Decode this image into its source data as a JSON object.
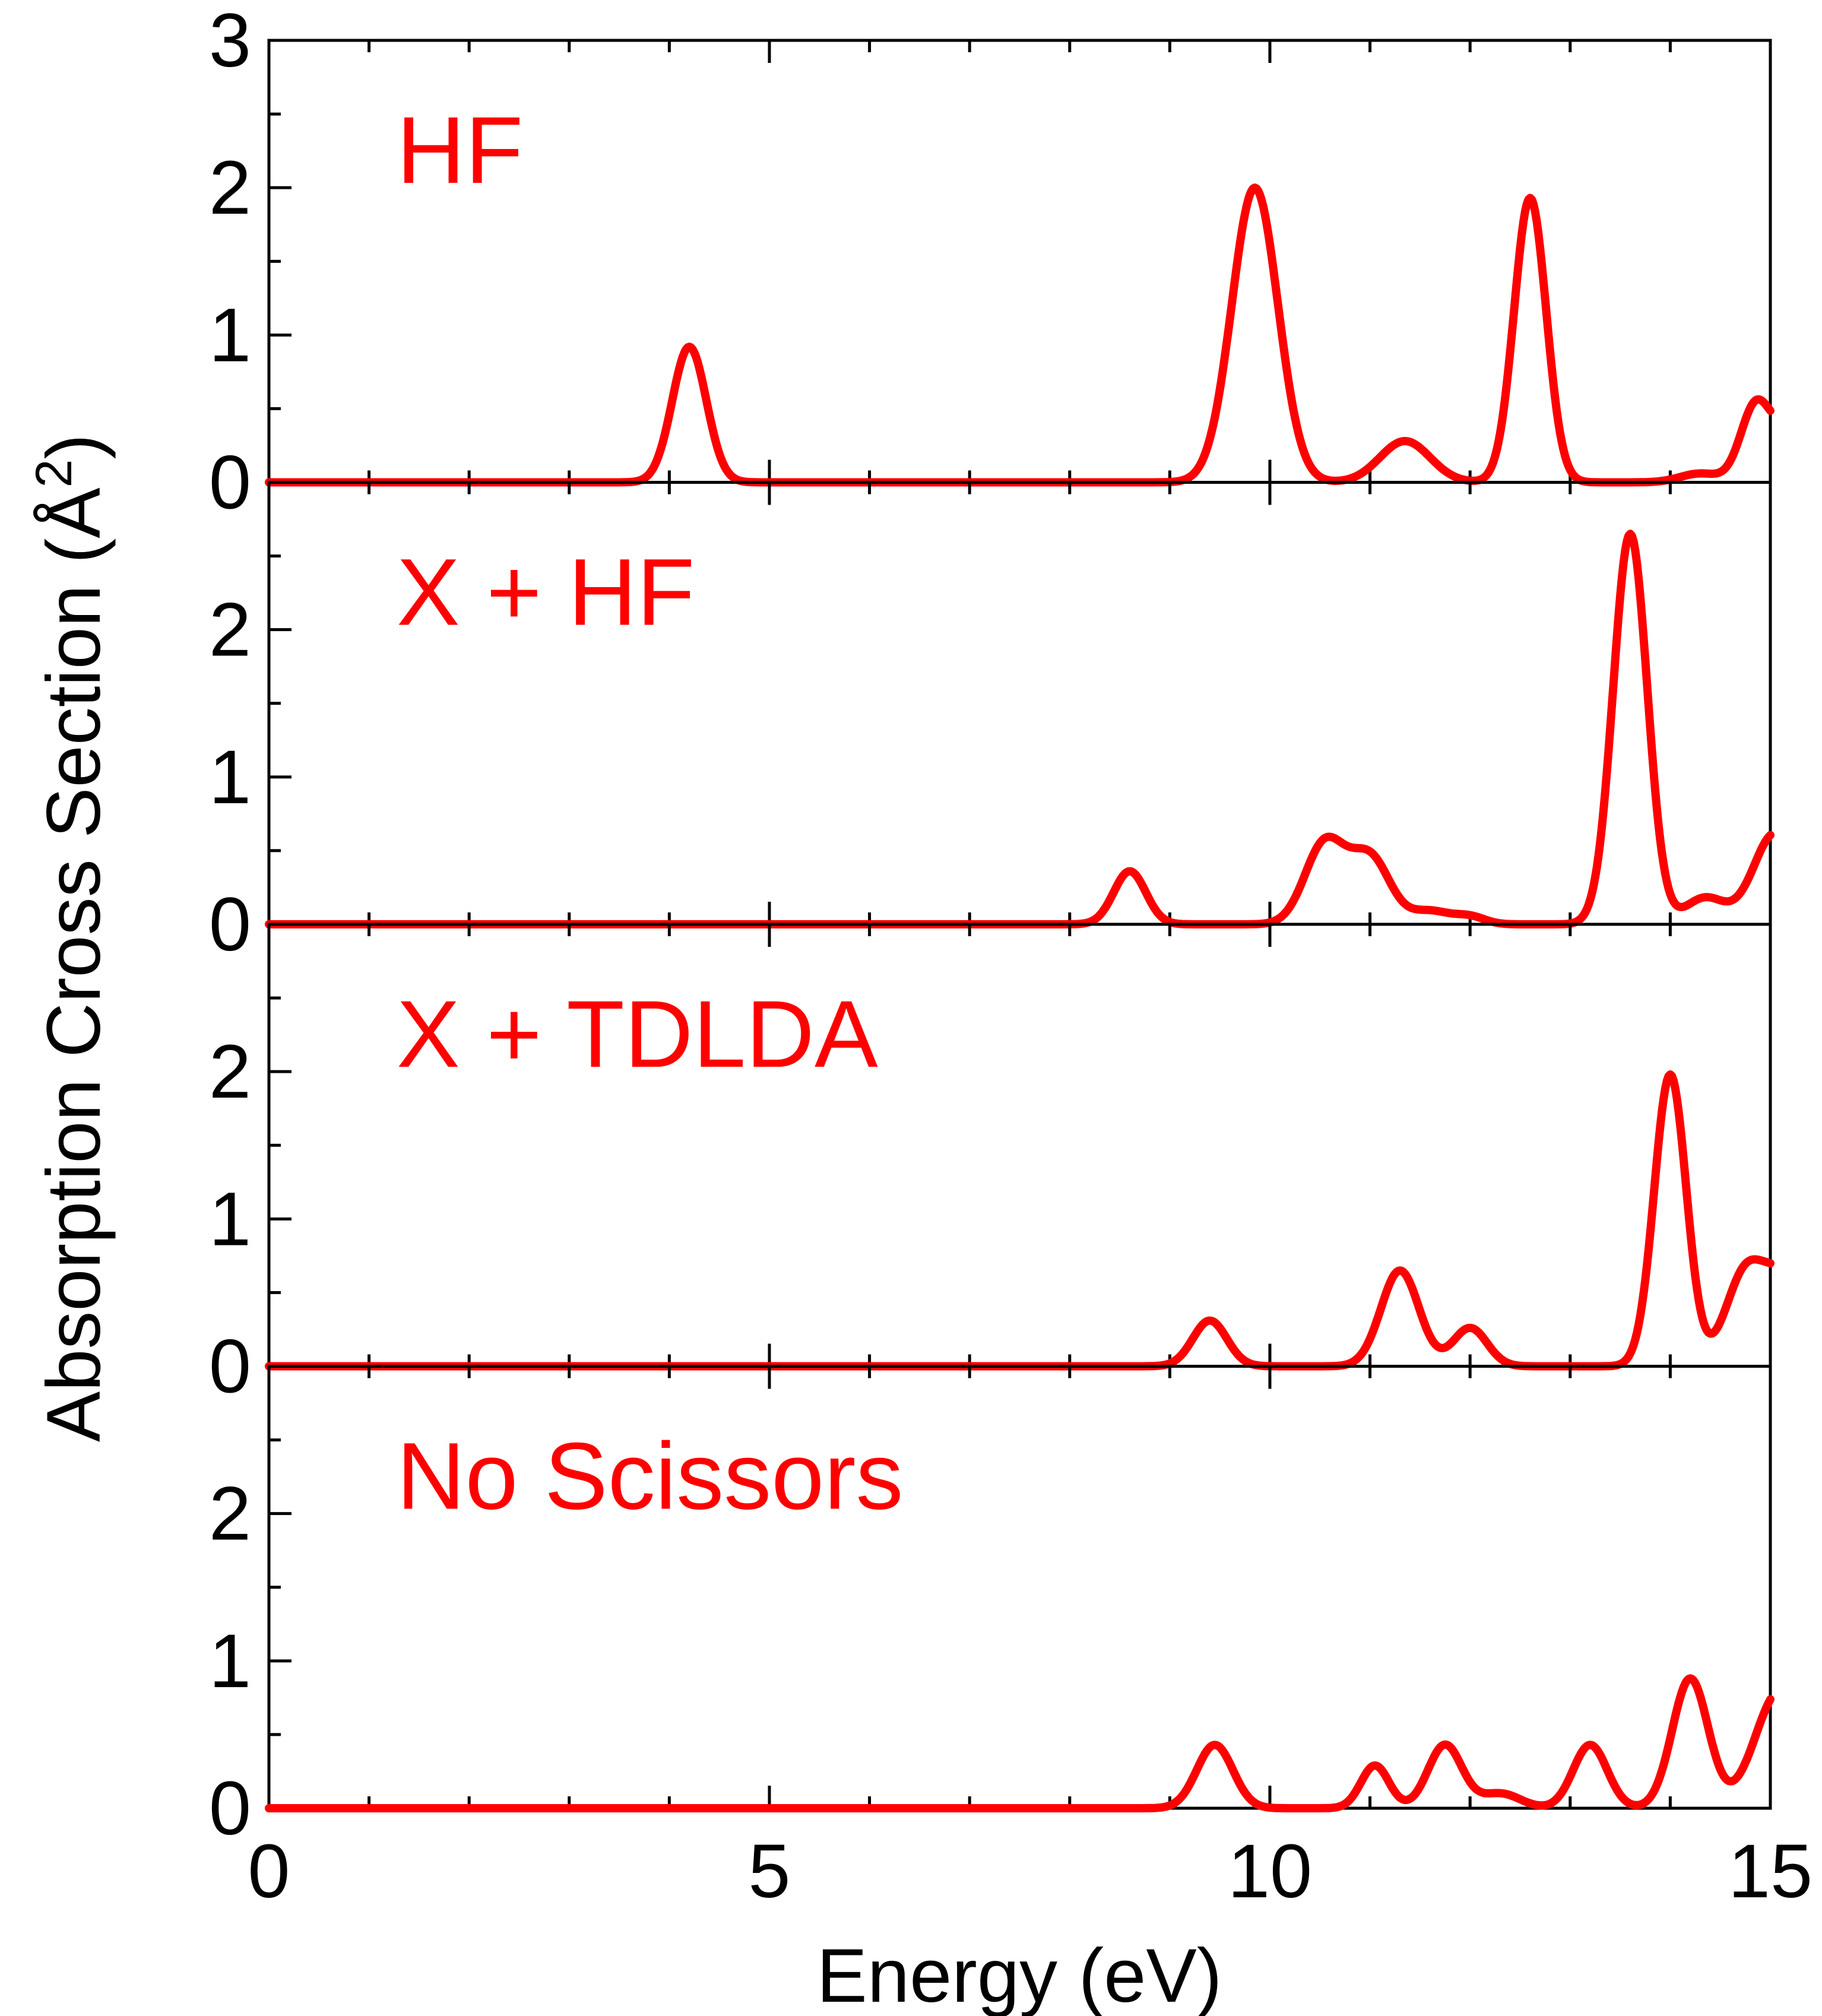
{
  "chart_data": {
    "type": "line",
    "xlabel": "Energy (eV)",
    "ylabel_main": "Absorption Cross Section (",
    "ylabel_unit": "Å",
    "ylabel_exp": "2",
    "ylabel_close": ")",
    "xlim": [
      0,
      15
    ],
    "x_ticks": [
      0,
      5,
      10,
      15
    ],
    "x_tick_labels": [
      "0",
      "5",
      "10",
      "15"
    ],
    "x_minor_step": 1,
    "line_color": "#ff0000",
    "axis_color": "#000000",
    "panels": [
      {
        "name": "hf",
        "label": "HF",
        "ylim": [
          0,
          3
        ],
        "y_ticks": [
          0,
          1,
          2,
          3
        ],
        "y_tick_labels": [
          "0",
          "1",
          "2",
          "3"
        ],
        "peaks": [
          [
            4.2,
            0.92,
            0.17
          ],
          [
            9.85,
            2.0,
            0.23
          ],
          [
            11.35,
            0.28,
            0.25
          ],
          [
            12.6,
            1.93,
            0.16
          ],
          [
            14.3,
            0.06,
            0.2
          ],
          [
            14.85,
            0.5,
            0.15
          ],
          [
            15.25,
            0.4,
            0.2
          ]
        ]
      },
      {
        "name": "x-hf",
        "label": "X + HF",
        "ylim": [
          0,
          3
        ],
        "y_ticks": [
          0,
          1,
          2
        ],
        "y_tick_labels": [
          "0",
          "1",
          "2"
        ],
        "peaks": [
          [
            8.6,
            0.36,
            0.16
          ],
          [
            10.55,
            0.55,
            0.2
          ],
          [
            11.0,
            0.45,
            0.2
          ],
          [
            11.6,
            0.09,
            0.2
          ],
          [
            12.0,
            0.05,
            0.15
          ],
          [
            13.6,
            2.65,
            0.17
          ],
          [
            14.35,
            0.18,
            0.2
          ],
          [
            15.05,
            0.62,
            0.22
          ]
        ]
      },
      {
        "name": "x-tdlda",
        "label": "X + TDLDA",
        "ylim": [
          0,
          3
        ],
        "y_ticks": [
          0,
          1,
          2
        ],
        "y_tick_labels": [
          "0",
          "1",
          "2"
        ],
        "peaks": [
          [
            9.4,
            0.31,
            0.17
          ],
          [
            11.3,
            0.65,
            0.19
          ],
          [
            12.0,
            0.26,
            0.17
          ],
          [
            14.0,
            1.98,
            0.16
          ],
          [
            14.75,
            0.62,
            0.2
          ],
          [
            15.15,
            0.55,
            0.2
          ]
        ]
      },
      {
        "name": "no-scissors",
        "label": "No Scissors",
        "ylim": [
          0,
          3
        ],
        "y_ticks": [
          0,
          1,
          2
        ],
        "y_tick_labels": [
          "0",
          "1",
          "2"
        ],
        "peaks": [
          [
            9.45,
            0.43,
            0.18
          ],
          [
            11.05,
            0.29,
            0.14
          ],
          [
            11.75,
            0.43,
            0.17
          ],
          [
            12.3,
            0.1,
            0.2
          ],
          [
            13.2,
            0.43,
            0.17
          ],
          [
            14.2,
            0.88,
            0.18
          ],
          [
            15.1,
            0.8,
            0.25
          ]
        ]
      }
    ]
  }
}
